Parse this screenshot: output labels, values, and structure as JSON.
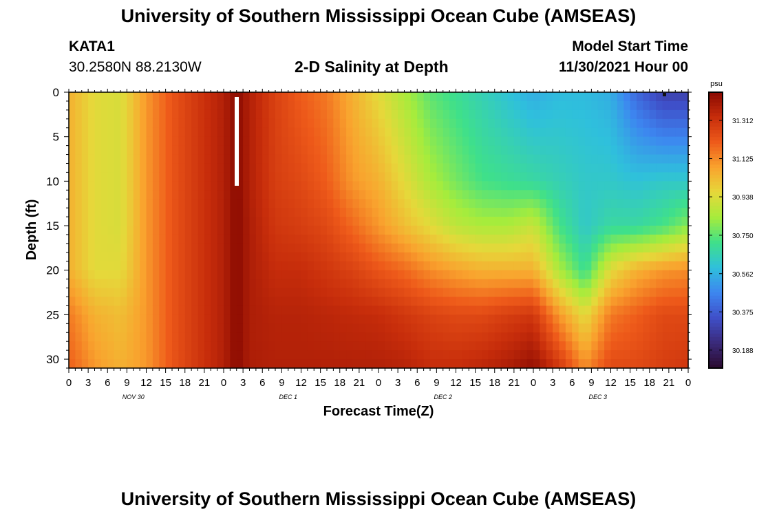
{
  "header": {
    "title": "University of Southern Mississippi Ocean Cube (AMSEAS)",
    "station_id": "KATA1",
    "station_coords": "30.2580N  88.2130W",
    "model_start_label": "Model Start Time",
    "model_start_value": "11/30/2021 Hour 00",
    "plot_title": "2-D Salinity at Depth"
  },
  "footer": {
    "repeat_title": "University of Southern Mississippi Ocean Cube (AMSEAS)"
  },
  "chart_data": {
    "type": "heatmap",
    "title": "2-D Salinity at Depth",
    "xlabel": "Forecast Time(Z)",
    "ylabel": "Depth (ft)",
    "x_hours_range": [
      0,
      96
    ],
    "ylim": [
      0,
      31
    ],
    "y_ticks": [
      0,
      5,
      10,
      15,
      20,
      25,
      30
    ],
    "x_tick_labels": [
      "0",
      "3",
      "6",
      "9",
      "12",
      "15",
      "18",
      "21",
      "0",
      "3",
      "6",
      "9",
      "12",
      "15",
      "18",
      "21",
      "0",
      "3",
      "6",
      "9",
      "12",
      "15",
      "18",
      "21",
      "0",
      "3",
      "6",
      "9",
      "12",
      "15",
      "18",
      "21",
      "0"
    ],
    "date_labels": [
      {
        "hour": 10,
        "label": "NOV 30"
      },
      {
        "hour": 34,
        "label": "DEC 1"
      },
      {
        "hour": 58,
        "label": "DEC 2"
      },
      {
        "hour": 82,
        "label": "DEC 3"
      }
    ],
    "colorbar": {
      "unit": "psu",
      "min": 30.1,
      "max": 31.45,
      "ticks": [
        "31.312",
        "31.125",
        "30.938",
        "30.750",
        "30.562",
        "30.375",
        "30.188"
      ],
      "colors": [
        "#2a0a2e",
        "#3a2a7a",
        "#3f4fc8",
        "#3d86f0",
        "#2fc0dc",
        "#3fe08a",
        "#a6ec3c",
        "#e6d83a",
        "#f9a32e",
        "#ee5a1a",
        "#c72d0b",
        "#8a0a02"
      ]
    },
    "salinity_samples": {
      "description": "estimated salinity (psu) at depth rows 0, 10, 15, 20, 25, 31 ft for each forecast hour column",
      "hours": [
        0,
        4,
        8,
        12,
        16,
        20,
        24,
        26,
        28,
        32,
        36,
        40,
        44,
        48,
        52,
        56,
        60,
        64,
        68,
        72,
        76,
        80,
        84,
        88,
        92,
        96
      ],
      "depths": [
        0,
        10,
        15,
        20,
        25,
        31
      ],
      "rows": [
        [
          31.05,
          31.05,
          31.05,
          31.05,
          31.15,
          31.2
        ],
        [
          30.95,
          30.95,
          30.95,
          30.95,
          31.05,
          31.1
        ],
        [
          30.93,
          30.93,
          30.93,
          30.95,
          31.02,
          31.05
        ],
        [
          31.1,
          31.1,
          31.1,
          31.1,
          31.1,
          31.1
        ],
        [
          31.22,
          31.22,
          31.22,
          31.22,
          31.22,
          31.22
        ],
        [
          31.3,
          31.3,
          31.3,
          31.3,
          31.3,
          31.3
        ],
        [
          31.37,
          31.37,
          31.37,
          31.37,
          31.37,
          31.37
        ],
        [
          31.45,
          31.45,
          31.45,
          31.45,
          31.45,
          31.45
        ],
        [
          31.37,
          31.37,
          31.38,
          31.38,
          31.38,
          31.38
        ],
        [
          31.27,
          31.28,
          31.3,
          31.33,
          31.36,
          31.37
        ],
        [
          31.2,
          31.25,
          31.28,
          31.33,
          31.36,
          31.37
        ],
        [
          31.15,
          31.2,
          31.25,
          31.3,
          31.35,
          31.37
        ],
        [
          31.05,
          31.1,
          31.18,
          31.27,
          31.34,
          31.37
        ],
        [
          30.95,
          31.05,
          31.1,
          31.22,
          31.33,
          31.37
        ],
        [
          30.85,
          30.95,
          31.02,
          31.18,
          31.3,
          31.36
        ],
        [
          30.75,
          30.85,
          30.95,
          31.12,
          31.27,
          31.33
        ],
        [
          30.7,
          30.78,
          30.88,
          31.08,
          31.25,
          31.33
        ],
        [
          30.65,
          30.72,
          30.85,
          31.05,
          31.25,
          31.35
        ],
        [
          30.6,
          30.7,
          30.85,
          31.05,
          31.28,
          31.38
        ],
        [
          30.55,
          30.68,
          30.9,
          31.05,
          31.3,
          31.43
        ],
        [
          30.58,
          30.65,
          30.72,
          30.85,
          31.1,
          31.3
        ],
        [
          30.58,
          30.62,
          30.62,
          30.7,
          30.95,
          31.12
        ],
        [
          30.55,
          30.62,
          30.68,
          30.95,
          31.15,
          31.25
        ],
        [
          30.4,
          30.6,
          30.68,
          31.05,
          31.2,
          31.25
        ],
        [
          30.3,
          30.62,
          30.72,
          31.1,
          31.25,
          31.28
        ],
        [
          30.3,
          30.62,
          30.8,
          31.12,
          31.25,
          31.3
        ]
      ]
    }
  }
}
